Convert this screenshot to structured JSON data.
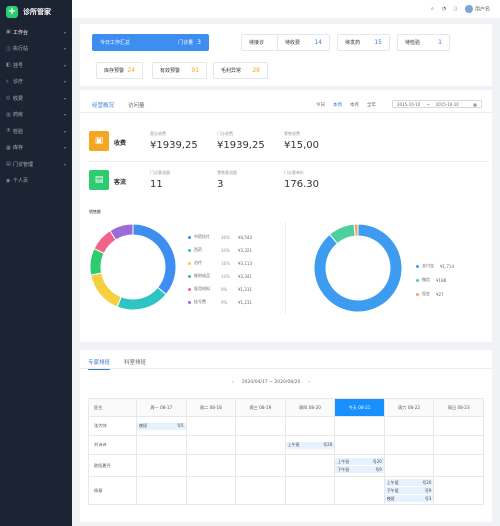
{
  "app": {
    "name": "诊所管家"
  },
  "sidebar": {
    "items": [
      {
        "label": "工作台",
        "icon": "dashboard-icon",
        "active": true
      },
      {
        "label": "执行站",
        "icon": "station-icon"
      },
      {
        "label": "挂号",
        "icon": "register-icon"
      },
      {
        "label": "诊疗",
        "icon": "stethoscope-icon"
      },
      {
        "label": "收费",
        "icon": "coin-icon"
      },
      {
        "label": "药房",
        "icon": "pharmacy-icon"
      },
      {
        "label": "检验",
        "icon": "flask-icon"
      },
      {
        "label": "库存",
        "icon": "box-icon"
      },
      {
        "label": "门诊管理",
        "icon": "clinic-icon"
      },
      {
        "label": "个人页",
        "icon": "user-icon"
      }
    ]
  },
  "topbar": {
    "user": "用户名"
  },
  "worktabs": [
    {
      "label": "今日工作汇总",
      "sub": "门诊量",
      "value": "3",
      "selected": true
    },
    {
      "label": "待接诊",
      "value": "3"
    },
    {
      "label": "待收费",
      "value": "14"
    },
    {
      "label": "待发药",
      "value": "15"
    },
    {
      "label": "待检验",
      "value": "1"
    },
    {
      "label": "库存预警",
      "value": "24"
    },
    {
      "label": "有效预警",
      "value": "91"
    },
    {
      "label": "毛利异常",
      "value": "28"
    }
  ],
  "overview": {
    "tabs": [
      "经营概况",
      "访问量"
    ],
    "periods": [
      "今日",
      "本周",
      "本月",
      "全年"
    ],
    "active_period": "本周",
    "date_start": "2015-10-10",
    "date_sep": "→",
    "date_end": "2015-10-10",
    "calendar_icon": "calendar-icon",
    "revenue": {
      "title": "收费",
      "labels": [
        "营业收费",
        "门诊收费",
        "零售收费"
      ],
      "values": [
        "¥1939,25",
        "¥1939,25",
        "¥15,00"
      ]
    },
    "traffic": {
      "title": "客流",
      "labels": [
        "门诊客流量",
        "零售客流量",
        "门诊客单价"
      ],
      "values": [
        "11",
        "3",
        "176.30"
      ]
    },
    "sales_label": "销售额"
  },
  "chart_data": [
    {
      "type": "pie",
      "title": "销售额",
      "categories": [
        "中药饮片",
        "西药",
        "治疗",
        "耗材成品",
        "医用材料",
        "挂号费"
      ],
      "percents": [
        36,
        20,
        16,
        10,
        9,
        9
      ],
      "values": [
        "¥4,544",
        "¥3,321",
        "¥3,113",
        "¥2,341",
        "¥1,231",
        "¥1,231"
      ],
      "colors": [
        "#3d8ef0",
        "#2fc4c4",
        "#f6d040",
        "#2ecc71",
        "#f0648c",
        "#9a6cd8"
      ]
    },
    {
      "type": "pie",
      "categories": [
        "支付宝",
        "微信",
        "现金"
      ],
      "values": [
        1714,
        188,
        27
      ],
      "labels": [
        "¥1,714",
        "¥188",
        "¥27"
      ],
      "colors": [
        "#3d9cf0",
        "#4ecfa0",
        "#f5a070"
      ]
    }
  ],
  "schedule": {
    "tabs": [
      "专家排班",
      "科室排班"
    ],
    "range": "2020/04/17 ~ 2020/08/20",
    "headers": [
      "医生",
      "周一 08-17",
      "周二 08-18",
      "周三 08-19",
      "周四 08-20",
      "今天 08-21",
      "周六 08-22",
      "周日 08-23"
    ],
    "doctors": [
      "张大帅",
      "刘诗诗",
      "欧阳夏丹",
      "杨幂"
    ],
    "slots": {
      "r0c1": [
        {
          "shift": "夜班",
          "num": "号5"
        }
      ],
      "r1c4": [
        {
          "shift": "上午班",
          "num": "号20"
        }
      ],
      "r2c5": [
        {
          "shift": "上午班",
          "num": "号20"
        },
        {
          "shift": "下午班",
          "num": "号9"
        }
      ],
      "r3c6": [
        {
          "shift": "上午班",
          "num": "号20"
        },
        {
          "shift": "下午班",
          "num": "号9"
        },
        {
          "shift": "夜班",
          "num": "号3"
        }
      ]
    }
  }
}
